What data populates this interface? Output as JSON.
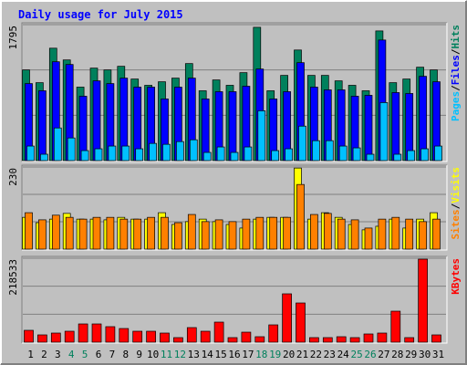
{
  "chart_data": [
    {
      "type": "bar",
      "title": "Daily usage for July 2015",
      "ylim": [
        0,
        1795
      ],
      "yticks": [
        1795
      ],
      "separator": "/",
      "series": [
        {
          "name": "Hits",
          "color": "#00805c",
          "values": [
            1197,
            1029,
            1484,
            1329,
            970,
            1221,
            1197,
            1245,
            1077,
            994,
            1041,
            1089,
            1281,
            922,
            1065,
            994,
            1161,
            1760,
            922,
            1125,
            1460,
            1125,
            1125,
            1053,
            994,
            922,
            1712,
            1029,
            1077,
            1233,
            1197
          ]
        },
        {
          "name": "Files",
          "color": "#0000ff",
          "values": [
            1017,
            922,
            1305,
            1269,
            850,
            1053,
            1017,
            1089,
            970,
            970,
            814,
            970,
            1089,
            814,
            910,
            910,
            982,
            1209,
            814,
            910,
            1293,
            970,
            934,
            934,
            850,
            862,
            1592,
            898,
            886,
            1113,
            1041
          ]
        },
        {
          "name": "Pages",
          "color": "#00c0ff",
          "values": [
            192,
            84,
            431,
            299,
            132,
            156,
            192,
            192,
            156,
            227,
            215,
            251,
            275,
            108,
            180,
            108,
            180,
            658,
            132,
            156,
            455,
            263,
            263,
            192,
            168,
            84,
            766,
            84,
            132,
            156,
            192
          ]
        }
      ]
    },
    {
      "type": "bar",
      "ylim": [
        0,
        230
      ],
      "yticks": [
        230
      ],
      "separator": "/",
      "series": [
        {
          "name": "Visits",
          "color": "#ffff00",
          "values": [
            89,
            74,
            84,
            100,
            84,
            84,
            82,
            89,
            84,
            84,
            102,
            69,
            77,
            84,
            77,
            69,
            59,
            84,
            89,
            89,
            227,
            84,
            102,
            89,
            69,
            54,
            64,
            84,
            59,
            84,
            102
          ]
        },
        {
          "name": "Sites",
          "color": "#ff8000",
          "values": [
            102,
            82,
            95,
            89,
            84,
            89,
            89,
            84,
            84,
            89,
            89,
            74,
            97,
            77,
            82,
            77,
            84,
            89,
            89,
            89,
            181,
            97,
            100,
            84,
            82,
            59,
            84,
            89,
            84,
            77,
            84
          ]
        }
      ]
    },
    {
      "type": "bar",
      "ylim": [
        0,
        218533
      ],
      "yticks": [
        218533
      ],
      "categories": [
        "1",
        "2",
        "3",
        "4",
        "5",
        "6",
        "7",
        "8",
        "9",
        "10",
        "11",
        "12",
        "13",
        "14",
        "15",
        "16",
        "17",
        "18",
        "19",
        "20",
        "21",
        "22",
        "23",
        "24",
        "25",
        "26",
        "27",
        "28",
        "29",
        "30",
        "31"
      ],
      "category_colors": [
        "#000000",
        "#000000",
        "#000000",
        "#00805c",
        "#00805c",
        "#000000",
        "#000000",
        "#000000",
        "#000000",
        "#000000",
        "#00805c",
        "#00805c",
        "#000000",
        "#000000",
        "#000000",
        "#000000",
        "#000000",
        "#00805c",
        "#00805c",
        "#000000",
        "#000000",
        "#000000",
        "#000000",
        "#000000",
        "#00805c",
        "#00805c",
        "#000000",
        "#000000",
        "#000000",
        "#000000",
        "#000000"
      ],
      "series": [
        {
          "name": "KBytes",
          "color": "#ff0000",
          "values": [
            30900,
            19000,
            23750,
            28500,
            47500,
            47500,
            40400,
            35600,
            28500,
            28500,
            23750,
            11900,
            38000,
            28500,
            52250,
            11900,
            26100,
            14250,
            45100,
            125900,
            102100,
            11900,
            11900,
            14250,
            11900,
            21400,
            23750,
            80750,
            11900,
            216100,
            19000
          ]
        }
      ]
    }
  ]
}
